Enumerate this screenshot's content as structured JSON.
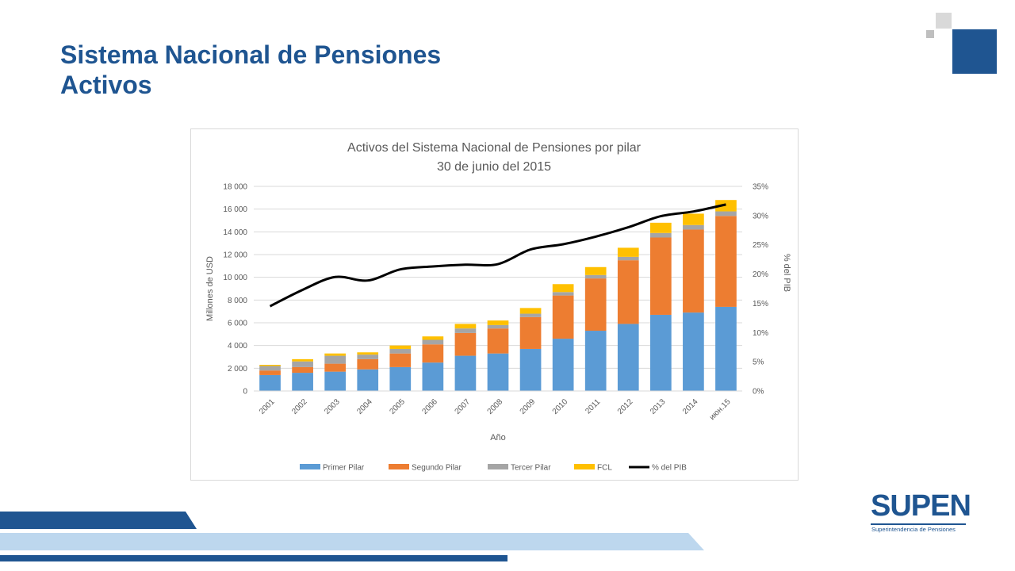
{
  "slide": {
    "title_line1": "Sistema Nacional de Pensiones",
    "title_line2": "Activos"
  },
  "logo": {
    "name": "SUPEN",
    "subtitle": "Superintendencia de Pensiones"
  },
  "colors": {
    "title": "#1f5591",
    "primer_pilar": "#5b9bd5",
    "segundo_pilar": "#ed7d31",
    "tercer_pilar": "#a5a5a5",
    "fcl": "#ffc000",
    "pib_line": "#000000",
    "band_dark": "#1f5591",
    "band_light": "#bdd7ee"
  },
  "chart_data": {
    "type": "bar",
    "stacked": true,
    "title": "Activos del Sistema Nacional de Pensiones por pilar",
    "subtitle": "30 de junio del 2015",
    "xlabel": "Año",
    "ylabel": "Millones de USD",
    "y2label": "% del PIB",
    "ylim": [
      0,
      18000
    ],
    "y2lim": [
      0,
      35
    ],
    "yticks": [
      "0",
      "2 000",
      "4 000",
      "6 000",
      "8 000",
      "10 000",
      "12 000",
      "14 000",
      "16 000",
      "18 000"
    ],
    "y2ticks": [
      "0%",
      "5%",
      "10%",
      "15%",
      "20%",
      "25%",
      "30%",
      "35%"
    ],
    "grid": true,
    "legend_position": "bottom",
    "categories": [
      "2001",
      "2002",
      "2003",
      "2004",
      "2005",
      "2006",
      "2007",
      "2008",
      "2009",
      "2010",
      "2011",
      "2012",
      "2013",
      "2014",
      "июн.15"
    ],
    "series": [
      {
        "name": "Primer Pilar",
        "type": "bar",
        "axis": "left",
        "values": [
          1400,
          1600,
          1700,
          1900,
          2100,
          2500,
          3100,
          3300,
          3700,
          4600,
          5300,
          5900,
          6700,
          6900,
          7400
        ]
      },
      {
        "name": "Segundo Pilar",
        "type": "bar",
        "axis": "left",
        "values": [
          400,
          500,
          700,
          900,
          1200,
          1600,
          2000,
          2200,
          2800,
          3800,
          4600,
          5600,
          6800,
          7300,
          8000
        ]
      },
      {
        "name": "Tercer Pilar",
        "type": "bar",
        "axis": "left",
        "values": [
          400,
          500,
          700,
          400,
          400,
          400,
          400,
          300,
          300,
          300,
          300,
          300,
          400,
          400,
          400
        ]
      },
      {
        "name": "FCL",
        "type": "bar",
        "axis": "left",
        "values": [
          100,
          200,
          200,
          200,
          300,
          300,
          400,
          400,
          500,
          700,
          700,
          800,
          900,
          1000,
          1000
        ]
      },
      {
        "name": "% del PIB",
        "type": "line",
        "axis": "right",
        "values": [
          14.5,
          17.3,
          19.5,
          18.9,
          20.8,
          21.3,
          21.6,
          21.7,
          24.2,
          25.1,
          26.4,
          28.0,
          29.9,
          30.7,
          31.9
        ]
      }
    ]
  }
}
